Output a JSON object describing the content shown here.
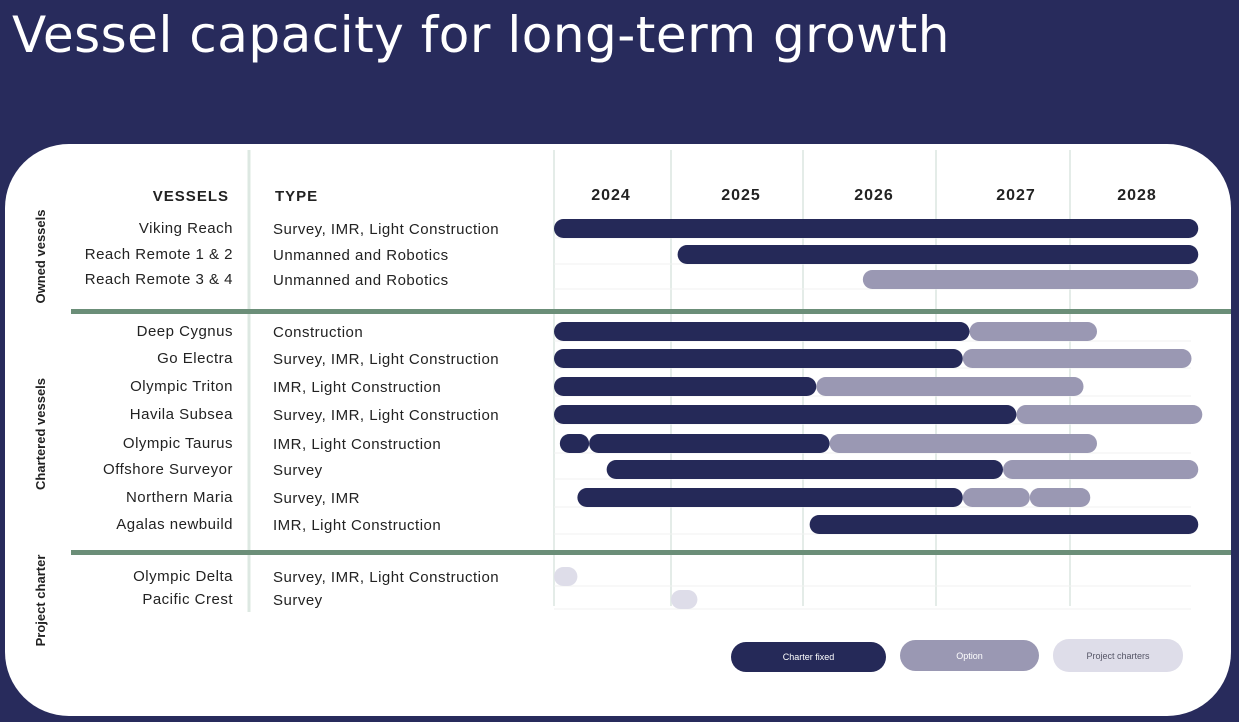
{
  "page": {
    "title": "Vessel capacity for long-term growth"
  },
  "colors": {
    "background": "#282b5c",
    "fixed": "#252958",
    "option": "#9a98b3",
    "project": "#dedde9",
    "divider": "#6b8e78"
  },
  "chart_data": {
    "type": "gantt",
    "headers": {
      "vessels": "VESSELS",
      "type": "TYPE"
    },
    "years": [
      "2024",
      "2025",
      "2026",
      "2027",
      "2028"
    ],
    "x_range": [
      2024.0,
      2029.0
    ],
    "groups": [
      {
        "name": "Owned vessels",
        "vessels": [
          {
            "name": "Viking Reach",
            "type": "Survey, IMR, Light Construction",
            "bars": [
              {
                "start": 2024.0,
                "end": 2028.95,
                "kind": "fixed"
              }
            ]
          },
          {
            "name": "Reach Remote 1 & 2",
            "type": "Unmanned and Robotics",
            "bars": [
              {
                "start": 2025.05,
                "end": 2028.95,
                "kind": "fixed"
              }
            ]
          },
          {
            "name": "Reach Remote 3 & 4",
            "type": "Unmanned and Robotics",
            "bars": [
              {
                "start": 2026.45,
                "end": 2028.95,
                "kind": "option"
              }
            ]
          }
        ]
      },
      {
        "name": "Chartered vessels",
        "vessels": [
          {
            "name": "Deep Cygnus",
            "type": "Construction",
            "bars": [
              {
                "start": 2024.0,
                "end": 2027.25,
                "kind": "fixed"
              },
              {
                "start": 2027.25,
                "end": 2028.2,
                "kind": "option"
              }
            ]
          },
          {
            "name": "Go Electra",
            "type": "Survey, IMR, Light Construction",
            "bars": [
              {
                "start": 2024.0,
                "end": 2027.2,
                "kind": "fixed"
              },
              {
                "start": 2027.2,
                "end": 2028.9,
                "kind": "option"
              }
            ]
          },
          {
            "name": "Olympic Triton",
            "type": "IMR, Light Construction",
            "bars": [
              {
                "start": 2024.0,
                "end": 2026.1,
                "kind": "fixed"
              },
              {
                "start": 2026.1,
                "end": 2028.1,
                "kind": "option"
              }
            ]
          },
          {
            "name": "Havila Subsea",
            "type": "Survey, IMR, Light Construction",
            "bars": [
              {
                "start": 2024.0,
                "end": 2027.6,
                "kind": "fixed"
              },
              {
                "start": 2027.6,
                "end": 2028.98,
                "kind": "option"
              }
            ]
          },
          {
            "name": "Olympic Taurus",
            "type": "IMR, Light Construction",
            "bars": [
              {
                "start": 2024.05,
                "end": 2024.3,
                "kind": "fixed"
              },
              {
                "start": 2024.3,
                "end": 2026.2,
                "kind": "fixed"
              },
              {
                "start": 2026.2,
                "end": 2028.2,
                "kind": "option"
              }
            ]
          },
          {
            "name": "Offshore Surveyor",
            "type": "Survey",
            "bars": [
              {
                "start": 2024.45,
                "end": 2027.5,
                "kind": "fixed"
              },
              {
                "start": 2027.5,
                "end": 2028.95,
                "kind": "option"
              }
            ]
          },
          {
            "name": "Northern Maria",
            "type": "Survey, IMR",
            "bars": [
              {
                "start": 2024.2,
                "end": 2027.2,
                "kind": "fixed"
              },
              {
                "start": 2027.2,
                "end": 2027.7,
                "kind": "option"
              },
              {
                "start": 2027.7,
                "end": 2028.15,
                "kind": "option"
              }
            ]
          },
          {
            "name": "Agalas newbuild",
            "type": "IMR, Light Construction",
            "bars": [
              {
                "start": 2026.05,
                "end": 2028.95,
                "kind": "fixed"
              }
            ]
          }
        ]
      },
      {
        "name": "Project charter",
        "vessels": [
          {
            "name": "Olympic Delta",
            "type": "Survey, IMR, Light Construction",
            "bars": [
              {
                "start": 2024.0,
                "end": 2024.2,
                "kind": "project"
              }
            ]
          },
          {
            "name": "Pacific Crest",
            "type": "Survey",
            "bars": [
              {
                "start": 2025.0,
                "end": 2025.2,
                "kind": "project"
              }
            ]
          }
        ]
      }
    ],
    "legend": [
      {
        "label": "Charter fixed",
        "kind": "fixed"
      },
      {
        "label": "Option",
        "kind": "option"
      },
      {
        "label": "Project charters",
        "kind": "project"
      }
    ]
  }
}
